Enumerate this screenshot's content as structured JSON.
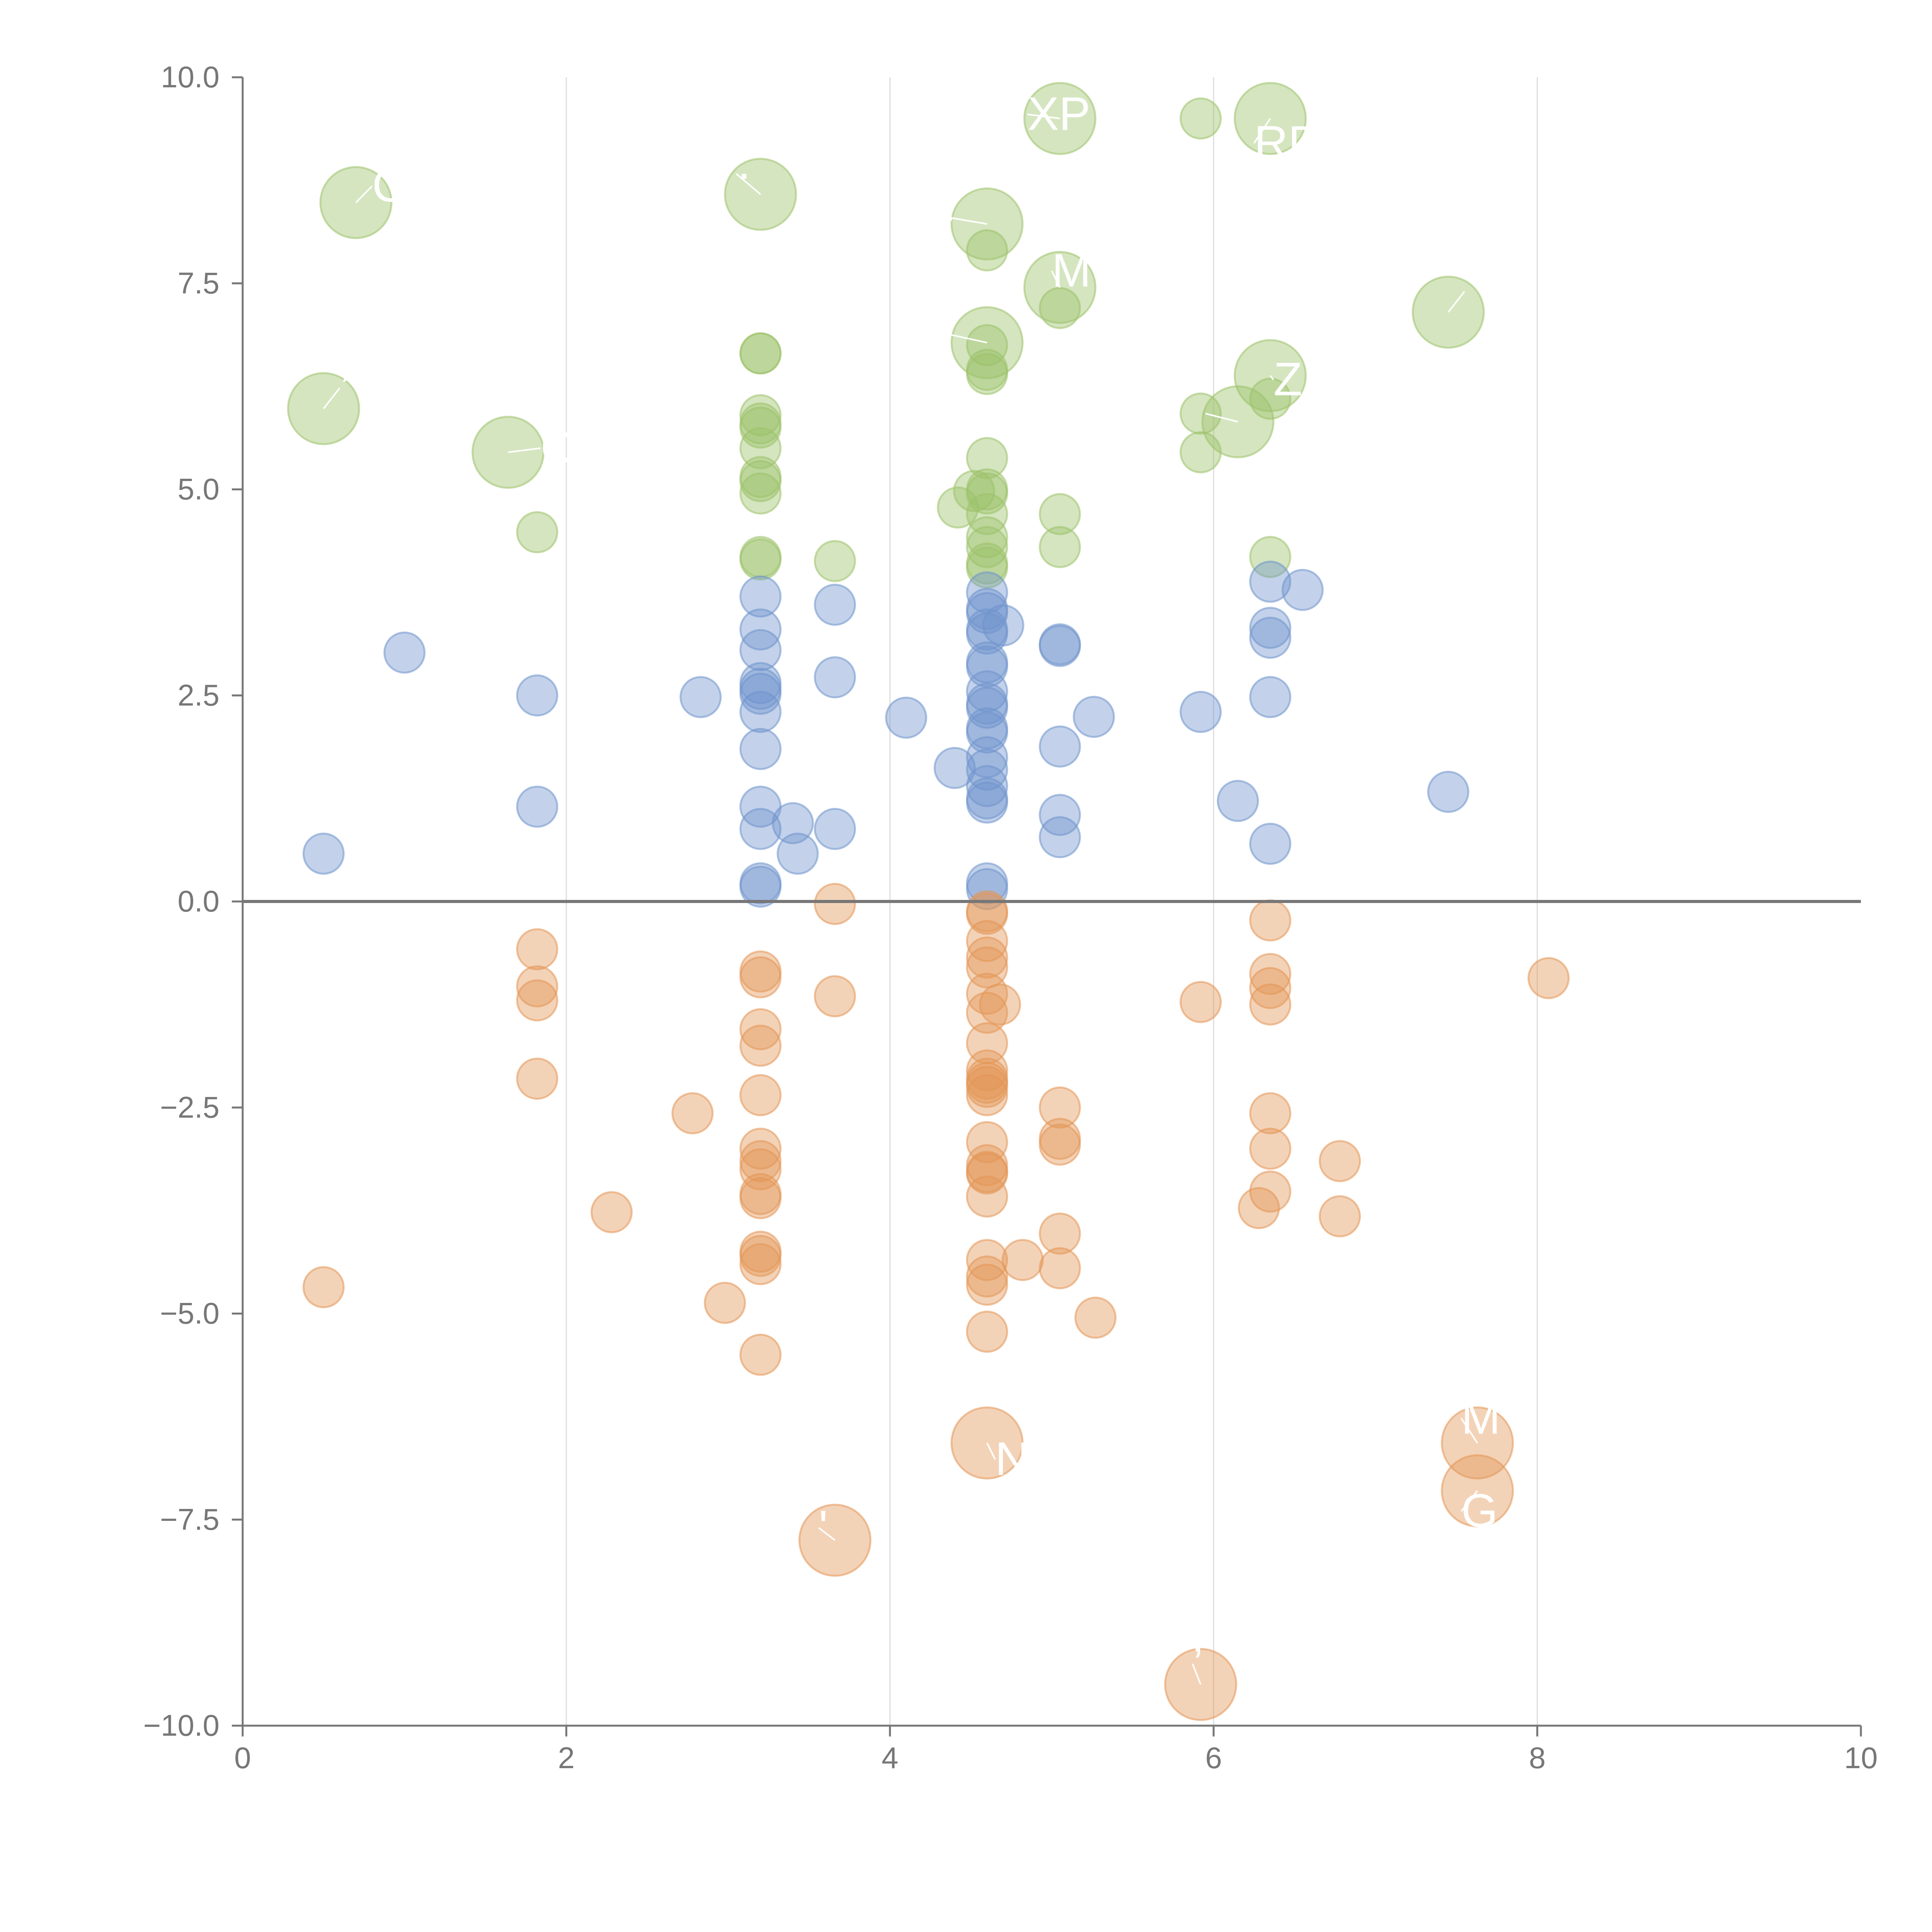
{
  "chart_data": {
    "type": "scatter",
    "title": "",
    "xlabel": "",
    "ylabel": "",
    "xlim": [
      0,
      10
    ],
    "ylim": [
      -10,
      10
    ],
    "xticks": [
      "0",
      "2",
      "4",
      "6",
      "8",
      "10"
    ],
    "yticks": [
      "10.0",
      "7.5",
      "5.0",
      "2.5",
      "0.0",
      "−2.5",
      "−5.0",
      "−7.5",
      "−10.0"
    ],
    "grid": "vertical",
    "legend": "none",
    "series": [
      {
        "name": "green",
        "color": "#9cc26a",
        "small": [
          [
            1.82,
            4.48
          ],
          [
            3.2,
            6.65
          ],
          [
            3.2,
            6.65
          ],
          [
            3.2,
            5.9
          ],
          [
            3.2,
            5.8
          ],
          [
            3.2,
            5.75
          ],
          [
            3.2,
            5.5
          ],
          [
            3.2,
            5.15
          ],
          [
            3.2,
            5.1
          ],
          [
            3.2,
            4.95
          ],
          [
            3.2,
            4.18
          ],
          [
            3.2,
            4.15
          ],
          [
            3.66,
            4.13
          ],
          [
            4.42,
            4.78
          ],
          [
            4.52,
            4.98
          ],
          [
            4.6,
            5.0
          ],
          [
            4.6,
            4.95
          ],
          [
            4.6,
            5.38
          ],
          [
            4.6,
            4.7
          ],
          [
            4.6,
            4.42
          ],
          [
            4.6,
            4.3
          ],
          [
            4.6,
            4.1
          ],
          [
            4.6,
            4.05
          ],
          [
            4.6,
            6.75
          ],
          [
            4.6,
            6.45
          ],
          [
            4.6,
            6.4
          ],
          [
            4.6,
            7.9
          ],
          [
            5.05,
            7.2
          ],
          [
            5.05,
            4.7
          ],
          [
            5.05,
            4.3
          ],
          [
            5.92,
            9.5
          ],
          [
            5.92,
            5.92
          ],
          [
            5.92,
            5.45
          ],
          [
            6.35,
            4.18
          ],
          [
            6.35,
            6.1
          ]
        ],
        "large": [
          [
            0.7,
            8.48
          ],
          [
            0.5,
            5.98
          ],
          [
            1.64,
            5.45
          ],
          [
            3.2,
            8.58
          ],
          [
            4.6,
            8.22
          ],
          [
            4.6,
            6.78
          ],
          [
            5.05,
            9.5
          ],
          [
            5.05,
            7.45
          ],
          [
            6.35,
            9.5
          ],
          [
            6.35,
            6.38
          ],
          [
            6.15,
            5.82
          ],
          [
            7.45,
            7.15
          ]
        ]
      },
      {
        "name": "blue",
        "color": "#6f94cc",
        "small": [
          [
            1.0,
            3.02
          ],
          [
            0.5,
            0.58
          ],
          [
            1.82,
            2.5
          ],
          [
            1.82,
            1.15
          ],
          [
            2.83,
            2.48
          ],
          [
            3.2,
            3.7
          ],
          [
            3.2,
            3.3
          ],
          [
            3.2,
            3.05
          ],
          [
            3.2,
            2.65
          ],
          [
            3.2,
            2.58
          ],
          [
            3.2,
            2.52
          ],
          [
            3.2,
            2.3
          ],
          [
            3.2,
            1.85
          ],
          [
            3.2,
            1.15
          ],
          [
            3.2,
            0.88
          ],
          [
            3.2,
            0.22
          ],
          [
            3.2,
            0.18
          ],
          [
            3.4,
            0.95
          ],
          [
            3.43,
            0.58
          ],
          [
            3.66,
            3.6
          ],
          [
            3.66,
            2.72
          ],
          [
            3.66,
            0.88
          ],
          [
            4.1,
            2.23
          ],
          [
            4.4,
            1.62
          ],
          [
            4.6,
            3.75
          ],
          [
            4.6,
            3.55
          ],
          [
            4.6,
            3.5
          ],
          [
            4.6,
            3.3
          ],
          [
            4.6,
            3.25
          ],
          [
            4.6,
            2.9
          ],
          [
            4.6,
            2.85
          ],
          [
            4.6,
            2.55
          ],
          [
            4.6,
            2.4
          ],
          [
            4.6,
            2.35
          ],
          [
            4.6,
            2.1
          ],
          [
            4.6,
            2.05
          ],
          [
            4.6,
            1.75
          ],
          [
            4.6,
            1.6
          ],
          [
            4.6,
            1.4
          ],
          [
            4.6,
            1.25
          ],
          [
            4.6,
            1.2
          ],
          [
            4.6,
            0.22
          ],
          [
            4.6,
            0.15
          ],
          [
            4.7,
            3.35
          ],
          [
            5.05,
            3.12
          ],
          [
            5.05,
            3.1
          ],
          [
            5.05,
            1.88
          ],
          [
            5.05,
            1.05
          ],
          [
            5.05,
            0.78
          ],
          [
            5.26,
            2.24
          ],
          [
            5.92,
            2.3
          ],
          [
            6.15,
            1.22
          ],
          [
            6.35,
            3.88
          ],
          [
            6.35,
            3.32
          ],
          [
            6.35,
            3.2
          ],
          [
            6.35,
            2.48
          ],
          [
            6.35,
            0.7
          ],
          [
            6.55,
            3.78
          ],
          [
            7.45,
            1.33
          ]
        ],
        "large": []
      },
      {
        "name": "orange",
        "color": "#e39556",
        "small": [
          [
            0.5,
            -4.68
          ],
          [
            1.82,
            -0.58
          ],
          [
            1.82,
            -1.03
          ],
          [
            1.82,
            -1.2
          ],
          [
            1.82,
            -2.15
          ],
          [
            2.28,
            -3.77
          ],
          [
            2.78,
            -2.57
          ],
          [
            2.98,
            -4.87
          ],
          [
            3.2,
            -0.85
          ],
          [
            3.2,
            -0.92
          ],
          [
            3.2,
            -1.55
          ],
          [
            3.2,
            -1.75
          ],
          [
            3.2,
            -2.35
          ],
          [
            3.2,
            -3.0
          ],
          [
            3.2,
            -3.15
          ],
          [
            3.2,
            -3.25
          ],
          [
            3.2,
            -3.55
          ],
          [
            3.2,
            -3.6
          ],
          [
            3.2,
            -4.25
          ],
          [
            3.2,
            -4.3
          ],
          [
            3.2,
            -4.4
          ],
          [
            3.2,
            -5.5
          ],
          [
            3.66,
            -0.03
          ],
          [
            3.66,
            -1.15
          ],
          [
            4.6,
            -0.12
          ],
          [
            4.6,
            -0.15
          ],
          [
            4.6,
            -0.48
          ],
          [
            4.6,
            -0.68
          ],
          [
            4.6,
            -0.8
          ],
          [
            4.6,
            -1.12
          ],
          [
            4.6,
            -1.35
          ],
          [
            4.6,
            -1.72
          ],
          [
            4.6,
            -2.05
          ],
          [
            4.6,
            -2.15
          ],
          [
            4.6,
            -2.2
          ],
          [
            4.6,
            -2.25
          ],
          [
            4.6,
            -2.35
          ],
          [
            4.6,
            -2.92
          ],
          [
            4.6,
            -3.2
          ],
          [
            4.6,
            -3.28
          ],
          [
            4.6,
            -3.3
          ],
          [
            4.6,
            -3.58
          ],
          [
            4.6,
            -4.35
          ],
          [
            4.6,
            -4.55
          ],
          [
            4.6,
            -4.65
          ],
          [
            4.6,
            -5.22
          ],
          [
            4.68,
            -1.25
          ],
          [
            4.82,
            -4.35
          ],
          [
            5.05,
            -2.5
          ],
          [
            5.05,
            -2.88
          ],
          [
            5.05,
            -2.95
          ],
          [
            5.05,
            -4.03
          ],
          [
            5.05,
            -4.45
          ],
          [
            5.27,
            -5.05
          ],
          [
            5.92,
            -1.22
          ],
          [
            6.28,
            -3.72
          ],
          [
            6.35,
            -0.23
          ],
          [
            6.35,
            -0.88
          ],
          [
            6.35,
            -1.05
          ],
          [
            6.35,
            -1.25
          ],
          [
            6.35,
            -2.57
          ],
          [
            6.35,
            -3.0
          ],
          [
            6.35,
            -3.52
          ],
          [
            6.78,
            -3.15
          ],
          [
            6.78,
            -3.82
          ],
          [
            8.07,
            -0.93
          ]
        ],
        "large": [
          [
            4.6,
            -6.57
          ],
          [
            3.66,
            -7.75
          ],
          [
            5.92,
            -9.5
          ],
          [
            7.63,
            -6.57
          ],
          [
            7.63,
            -7.15
          ]
        ]
      }
    ],
    "annotations": [
      {
        "text": "C",
        "x": 0.7,
        "y": 8.48,
        "dx": 0.1,
        "dy": 0.2
      },
      {
        "text": "’",
        "x": 0.5,
        "y": 5.98,
        "dx": 0.1,
        "dy": 0.25
      },
      {
        "text": "CE",
        "x": 1.64,
        "y": 5.45,
        "dx": 0.2,
        "dy": 0.05
      },
      {
        "text": "·",
        "x": 3.2,
        "y": 8.58,
        "dx": -0.15,
        "dy": 0.25
      },
      {
        "text": "-",
        "x": 4.6,
        "y": 8.22,
        "dx": -0.3,
        "dy": 0.1
      },
      {
        "text": "·",
        "x": 4.6,
        "y": 6.78,
        "dx": -0.35,
        "dy": 0.15
      },
      {
        "text": "XP",
        "x": 5.05,
        "y": 9.5,
        "dx": -0.2,
        "dy": 0.05
      },
      {
        "text": "M",
        "x": 5.05,
        "y": 7.45,
        "dx": -0.05,
        "dy": 0.2
      },
      {
        "text": "RD",
        "x": 6.35,
        "y": 9.5,
        "dx": -0.1,
        "dy": -0.3
      },
      {
        "text": "Z",
        "x": 6.35,
        "y": 6.38,
        "dx": 0.02,
        "dy": -0.05
      },
      {
        "text": "",
        "x": 6.15,
        "y": 5.82,
        "dx": -0.2,
        "dy": 0.1
      },
      {
        "text": "",
        "x": 7.45,
        "y": 7.15,
        "dx": 0.1,
        "dy": 0.25
      },
      {
        "text": "N",
        "x": 4.6,
        "y": -6.57,
        "dx": 0.05,
        "dy": -0.2
      },
      {
        "text": "'",
        "x": 3.66,
        "y": -7.75,
        "dx": -0.1,
        "dy": 0.15
      },
      {
        "text": "’",
        "x": 5.92,
        "y": -9.5,
        "dx": -0.05,
        "dy": 0.25
      },
      {
        "text": "M",
        "x": 7.63,
        "y": -6.57,
        "dx": -0.1,
        "dy": 0.3
      },
      {
        "text": "G",
        "x": 7.63,
        "y": -7.15,
        "dx": -0.1,
        "dy": -0.25
      }
    ]
  }
}
